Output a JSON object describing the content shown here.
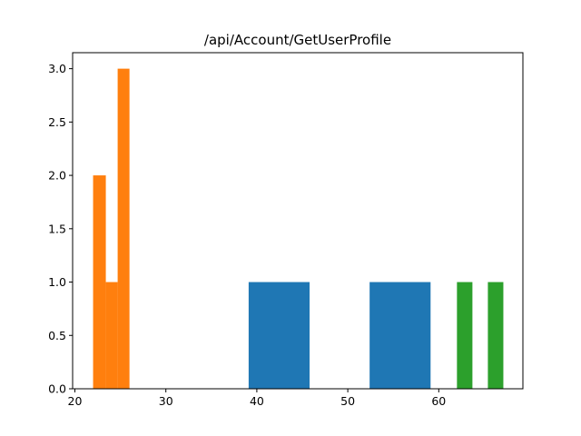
{
  "chart_data": {
    "type": "bar",
    "title": "/api/Account/GetUserProfile",
    "xlabel": "",
    "ylabel": "",
    "xlim": [
      19.75,
      69.25
    ],
    "ylim": [
      0,
      3.15
    ],
    "grid": false,
    "x_ticks": [
      20,
      30,
      40,
      50,
      60
    ],
    "x_tick_labels": [
      "20",
      "30",
      "40",
      "50",
      "60"
    ],
    "y_ticks": [
      0,
      0.5,
      1,
      1.5,
      2,
      2.5,
      3
    ],
    "y_tick_labels": [
      "0.0",
      "0.5",
      "1.0",
      "1.5",
      "2.0",
      "2.5",
      "3.0"
    ],
    "series": [
      {
        "color": "#1f77b4",
        "bins": [
          {
            "x0": 39.1,
            "x1": 45.8,
            "count": 1
          },
          {
            "x0": 52.4,
            "x1": 59.1,
            "count": 1
          }
        ]
      },
      {
        "color": "#ff7f0e",
        "bins": [
          {
            "x0": 22.0,
            "x1": 23.4,
            "count": 2
          },
          {
            "x0": 23.4,
            "x1": 24.7,
            "count": 1
          },
          {
            "x0": 24.7,
            "x1": 26.0,
            "count": 3
          }
        ]
      },
      {
        "color": "#2ca02c",
        "bins": [
          {
            "x0": 62.0,
            "x1": 63.7,
            "count": 1
          },
          {
            "x0": 65.4,
            "x1": 67.1,
            "count": 1
          }
        ]
      }
    ]
  }
}
